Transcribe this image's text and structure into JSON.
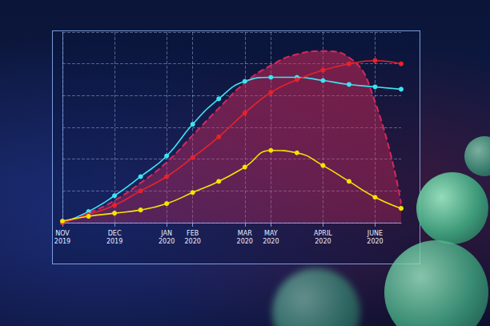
{
  "chart_data": {
    "type": "line",
    "categories": [
      "NOV 2019",
      null,
      "DEC 2019",
      null,
      "JAN 2020",
      "FEB 2020",
      null,
      "MAR 2020",
      "MAY 2020",
      null,
      "APRIL 2020",
      null,
      "JUNE 2020",
      null
    ],
    "series": [
      {
        "type": "area",
        "color": "#d8285a",
        "line_style": "dashed",
        "marker": "none",
        "values": [
          0,
          6,
          14,
          25,
          38,
          55,
          72,
          88,
          99,
          106,
          108,
          104,
          76,
          12
        ]
      },
      {
        "type": "line",
        "color": "#3fe3f2",
        "line_style": "solid",
        "marker": "circle",
        "values": [
          0,
          7,
          17,
          29,
          42,
          62,
          78,
          89,
          91.5,
          91.5,
          89.5,
          87,
          85.5,
          84
        ]
      },
      {
        "type": "line",
        "color": "#e8222c",
        "line_style": "solid",
        "marker": "circle",
        "values": [
          0,
          5,
          11,
          20,
          29,
          41,
          54,
          69,
          82,
          90,
          96,
          100,
          102,
          100
        ]
      },
      {
        "type": "line",
        "color": "#f5e400",
        "line_style": "solid",
        "marker": "circle",
        "values": [
          1,
          4,
          6,
          8,
          12,
          19,
          26,
          35,
          45.5,
          44,
          36,
          26,
          16,
          9
        ]
      }
    ],
    "ylim": [
      0,
      120
    ],
    "yticks": [
      0,
      20,
      40,
      60,
      80,
      100,
      120
    ],
    "grid": true,
    "tick_labels": "x"
  }
}
